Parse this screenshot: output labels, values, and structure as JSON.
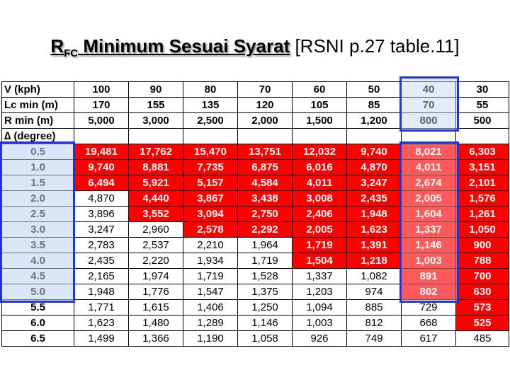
{
  "title": {
    "main": "R",
    "sub": "FC",
    "rest": " Minimum Sesuai Syarat",
    "source": " [RSNI p.27 table.11]"
  },
  "header_rows": [
    {
      "label": "V (kph)",
      "values": [
        "100",
        "90",
        "80",
        "70",
        "60",
        "50",
        "40",
        "30"
      ]
    },
    {
      "label": "Lc min (m)",
      "values": [
        "170",
        "155",
        "135",
        "120",
        "105",
        "85",
        "70",
        "55"
      ]
    },
    {
      "label": "R min (m)",
      "values": [
        "5,000",
        "3,000",
        "2,500",
        "2,000",
        "1,500",
        "1,200",
        "800",
        "500"
      ]
    }
  ],
  "delta_label": "∆ (degree)",
  "rows": [
    {
      "deg": "0.5",
      "values": [
        "19,481",
        "17,762",
        "15,470",
        "13,751",
        "12,032",
        "9,740",
        "8,021",
        "6,303"
      ],
      "red_from": 0
    },
    {
      "deg": "1.0",
      "values": [
        "9,740",
        "8,881",
        "7,735",
        "6,875",
        "6,016",
        "4,870",
        "4,011",
        "3,151"
      ],
      "red_from": 0
    },
    {
      "deg": "1.5",
      "values": [
        "6,494",
        "5,921",
        "5,157",
        "4,584",
        "4,011",
        "3,247",
        "2,674",
        "2,101"
      ],
      "red_from": 0
    },
    {
      "deg": "2.0",
      "values": [
        "4,870",
        "4,440",
        "3,867",
        "3,438",
        "3,008",
        "2,435",
        "2,005",
        "1,576"
      ],
      "red_from": 1
    },
    {
      "deg": "2.5",
      "values": [
        "3,896",
        "3,552",
        "3,094",
        "2,750",
        "2,406",
        "1,948",
        "1,604",
        "1,261"
      ],
      "red_from": 1
    },
    {
      "deg": "3.0",
      "values": [
        "3,247",
        "2,960",
        "2,578",
        "2,292",
        "2,005",
        "1,623",
        "1,337",
        "1,050"
      ],
      "red_from": 2
    },
    {
      "deg": "3.5",
      "values": [
        "2,783",
        "2,537",
        "2,210",
        "1,964",
        "1,719",
        "1,391",
        "1,146",
        "900"
      ],
      "red_from": 4
    },
    {
      "deg": "4.0",
      "values": [
        "2,435",
        "2,220",
        "1,934",
        "1,719",
        "1,504",
        "1,218",
        "1,003",
        "788"
      ],
      "red_from": 4
    },
    {
      "deg": "4.5",
      "values": [
        "2,165",
        "1,974",
        "1,719",
        "1,528",
        "1,337",
        "1,082",
        "891",
        "700"
      ],
      "red_from": 6
    },
    {
      "deg": "5.0",
      "values": [
        "1,948",
        "1,776",
        "1,547",
        "1,375",
        "1,203",
        "974",
        "802",
        "630"
      ],
      "red_from": 6
    },
    {
      "deg": "5.5",
      "values": [
        "1,771",
        "1,615",
        "1,406",
        "1,250",
        "1,094",
        "885",
        "729",
        "573"
      ],
      "red_from": 7
    },
    {
      "deg": "6.0",
      "values": [
        "1,623",
        "1,480",
        "1,289",
        "1,146",
        "1,003",
        "812",
        "668",
        "525"
      ],
      "red_from": 7
    },
    {
      "deg": "6.5",
      "values": [
        "1,499",
        "1,366",
        "1,190",
        "1,058",
        "926",
        "749",
        "617",
        "485"
      ],
      "red_from": 8
    }
  ],
  "colors": {
    "red": "#ff0000",
    "highlight_border": "#1f35d6"
  }
}
